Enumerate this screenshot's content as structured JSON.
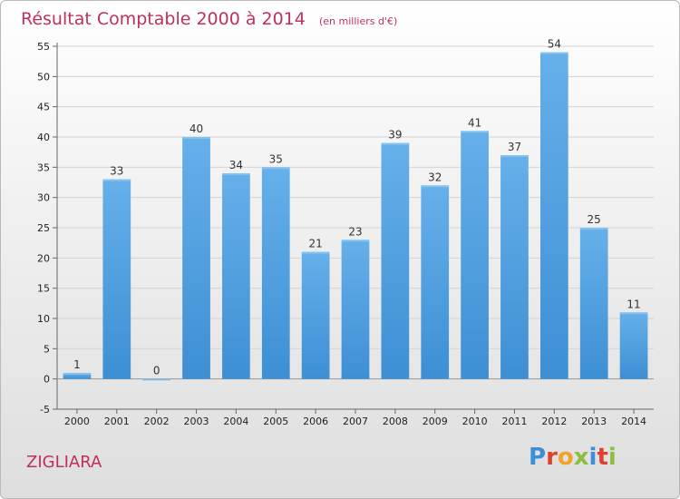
{
  "commune": "ZIGLIARA",
  "logo": {
    "letters": [
      {
        "ch": "P",
        "color": "#3a8fd6"
      },
      {
        "ch": "r",
        "color": "#e0412e"
      },
      {
        "ch": "o",
        "color": "#f2a22a"
      },
      {
        "ch": "x",
        "color": "#8cbf3f"
      },
      {
        "ch": "i",
        "color": "#3a8fd6"
      },
      {
        "ch": "t",
        "color": "#e0412e"
      },
      {
        "ch": "i",
        "color": "#8cbf3f"
      }
    ]
  },
  "chart_data": {
    "type": "bar",
    "title": "Résultat Comptable 2000 à 2014",
    "subtitle": "(en milliers d'€)",
    "categories": [
      "2000",
      "2001",
      "2002",
      "2003",
      "2004",
      "2005",
      "2006",
      "2007",
      "2008",
      "2009",
      "2010",
      "2011",
      "2012",
      "2013",
      "2014"
    ],
    "values": [
      1,
      33,
      0,
      40,
      34,
      35,
      21,
      23,
      39,
      32,
      41,
      37,
      54,
      25,
      11
    ],
    "ylim": [
      -5,
      55
    ],
    "yticks": [
      -5,
      0,
      5,
      10,
      15,
      20,
      25,
      30,
      35,
      40,
      45,
      50,
      55
    ],
    "grid": true,
    "bar_color": "#3d8fd4",
    "bar_color_light": "#66b0ea"
  }
}
